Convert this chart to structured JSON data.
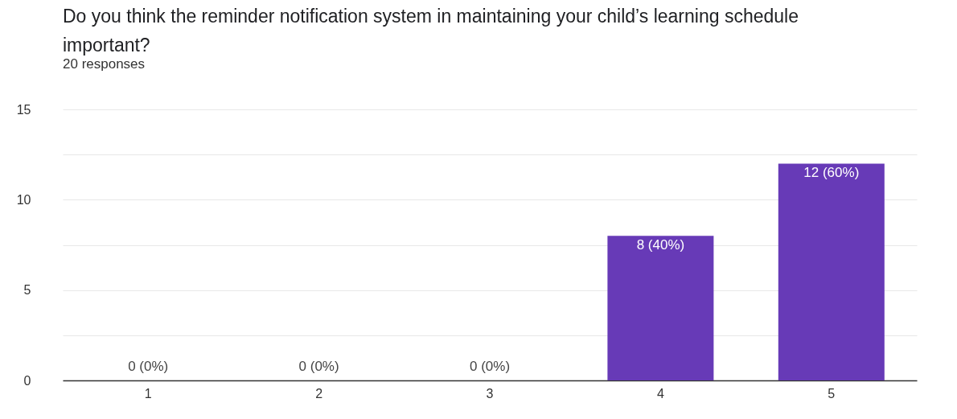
{
  "chart_data": {
    "type": "bar",
    "title": "Do you think the reminder notification system in maintaining your child’s learning schedule important?",
    "subtitle": "20 responses",
    "categories": [
      "1",
      "2",
      "3",
      "4",
      "5"
    ],
    "values": [
      0,
      0,
      0,
      8,
      12
    ],
    "color": "#673ab7",
    "value_labels": [
      "0 (0%)",
      "0 (0%)",
      "0 (0%)",
      "8 (40%)",
      "12 (60%)"
    ],
    "ylim": [
      0,
      15
    ],
    "yticks": [
      0,
      {
        "value": 2.5,
        "label": null
      },
      5,
      {
        "value": 7.5,
        "label": null
      },
      10,
      {
        "value": 12.5,
        "label": null
      },
      15
    ],
    "grid": "y"
  }
}
